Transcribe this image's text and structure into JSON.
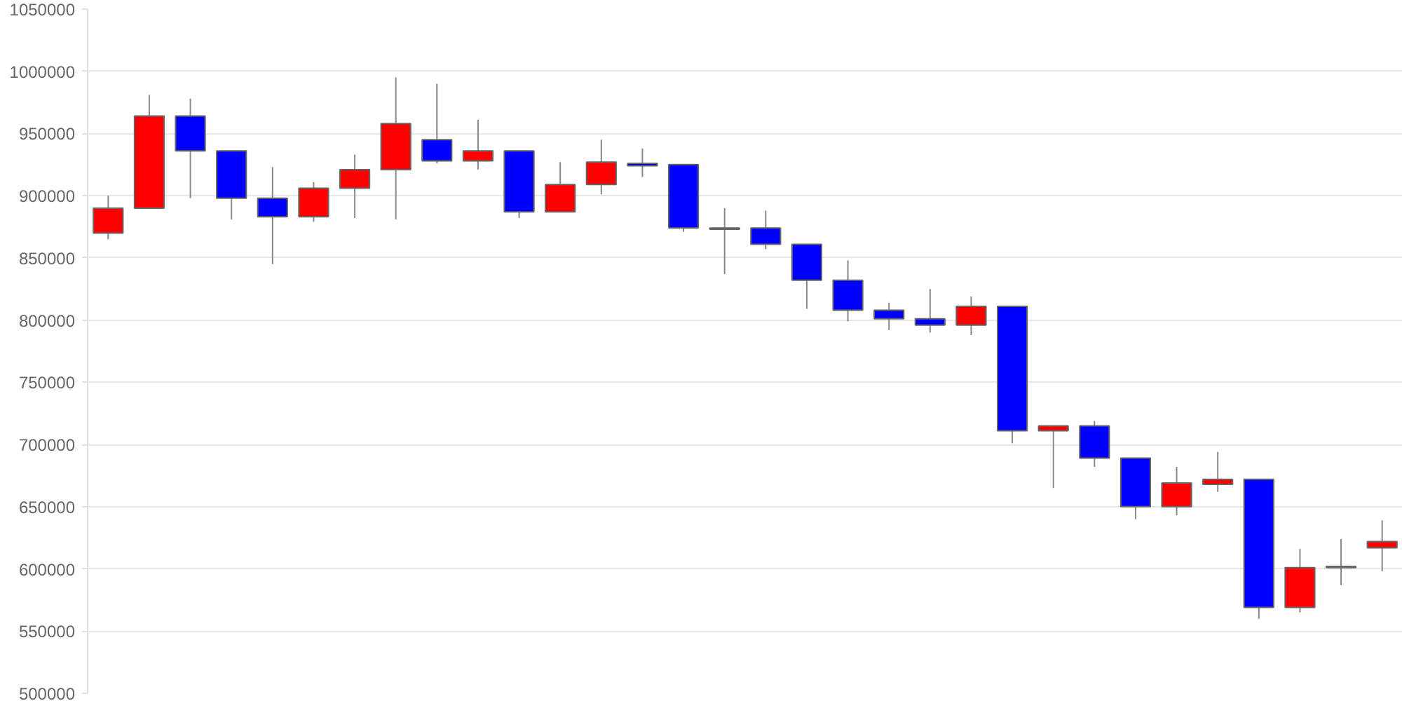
{
  "chart_data": {
    "type": "candlestick",
    "categories": [
      null,
      null,
      null,
      null,
      null,
      null,
      null,
      null,
      null,
      null,
      null,
      null,
      null,
      null,
      null,
      null,
      null,
      null,
      null,
      null,
      null,
      null,
      null,
      null,
      null,
      null,
      null,
      null,
      null,
      null,
      null,
      null
    ],
    "ohlc": [
      [
        870000,
        900000,
        865000,
        890000
      ],
      [
        890000,
        981000,
        890000,
        964000
      ],
      [
        964000,
        978000,
        898000,
        936000
      ],
      [
        936000,
        936000,
        881000,
        898000
      ],
      [
        898000,
        923000,
        845000,
        883000
      ],
      [
        883000,
        911000,
        879000,
        906000
      ],
      [
        906000,
        933000,
        882000,
        921000
      ],
      [
        921000,
        995000,
        881000,
        958000
      ],
      [
        945000,
        990000,
        926000,
        928000
      ],
      [
        928000,
        961000,
        921000,
        936000
      ],
      [
        936000,
        936000,
        882000,
        887000
      ],
      [
        887000,
        927000,
        887000,
        909000
      ],
      [
        909000,
        945000,
        901000,
        927000
      ],
      [
        926000,
        938000,
        915000,
        924000
      ],
      [
        925000,
        925000,
        871000,
        874000
      ],
      [
        874000,
        890000,
        837000,
        873000
      ],
      [
        874000,
        888000,
        857000,
        861000
      ],
      [
        861000,
        861000,
        809000,
        832000
      ],
      [
        832000,
        848000,
        799000,
        808000
      ],
      [
        808000,
        814000,
        792000,
        801000
      ],
      [
        801000,
        825000,
        790000,
        796000
      ],
      [
        796000,
        819000,
        788000,
        811000
      ],
      [
        811000,
        811000,
        701000,
        711000
      ],
      [
        711000,
        715000,
        665000,
        715000
      ],
      [
        715000,
        719000,
        682000,
        689000
      ],
      [
        689000,
        689000,
        640000,
        650000
      ],
      [
        650000,
        682000,
        643000,
        669000
      ],
      [
        668000,
        694000,
        662000,
        672000
      ],
      [
        672000,
        672000,
        560000,
        569000
      ],
      [
        569000,
        616000,
        565000,
        601000
      ],
      [
        601000,
        624000,
        587000,
        602000
      ],
      [
        617000,
        639000,
        598000,
        622000
      ]
    ],
    "colors": [
      "#ff0000",
      "#ff0000",
      "#0000ff",
      "#0000ff",
      "#0000ff",
      "#ff0000",
      "#ff0000",
      "#ff0000",
      "#0000ff",
      "#ff0000",
      "#0000ff",
      "#ff0000",
      "#ff0000",
      "#0000ff",
      "#0000ff",
      "#0000ff",
      "#0000ff",
      "#0000ff",
      "#0000ff",
      "#0000ff",
      "#0000ff",
      "#ff0000",
      "#0000ff",
      "#ff0000",
      "#0000ff",
      "#0000ff",
      "#ff0000",
      "#ff0000",
      "#0000ff",
      "#ff0000",
      "#ff0000",
      "#ff0000"
    ],
    "ylim": [
      500000,
      1050000
    ],
    "yticks": [
      500000,
      550000,
      600000,
      650000,
      700000,
      750000,
      800000,
      850000,
      900000,
      950000,
      1000000,
      1050000
    ],
    "grid": "y",
    "tick_labels": "y"
  }
}
